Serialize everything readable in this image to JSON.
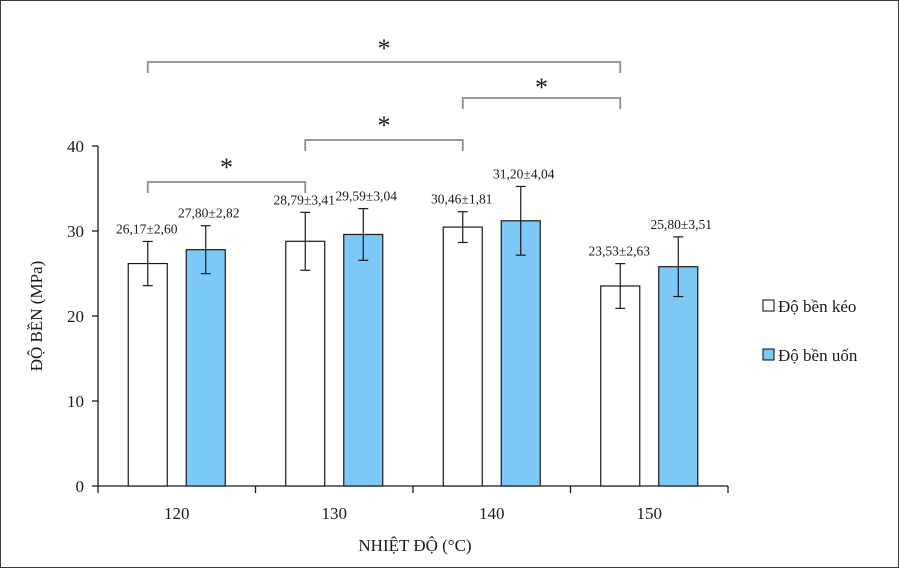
{
  "chart_data": {
    "type": "bar",
    "xlabel": "NHIỆT ĐỘ (°C)",
    "ylabel": "ĐỘ BỀN (MPa)",
    "categories": [
      "120",
      "130",
      "140",
      "150"
    ],
    "ylim": [
      0,
      40
    ],
    "yticks": [
      0,
      10,
      20,
      30,
      40
    ],
    "grid": false,
    "legend_position": "right",
    "series": [
      {
        "name": "Độ bền kéo",
        "color": "#ffffff",
        "values": [
          26.17,
          28.79,
          30.46,
          23.53
        ],
        "errors": [
          2.6,
          3.41,
          1.81,
          2.63
        ],
        "labels": [
          "26,17±2,60",
          "28,79±3,41",
          "30,46±1,81",
          "23,53±2,63"
        ]
      },
      {
        "name": "Độ bền uốn",
        "color": "#7cc8f7",
        "values": [
          27.8,
          29.59,
          31.2,
          25.8
        ],
        "errors": [
          2.82,
          3.04,
          4.04,
          3.51
        ],
        "labels": [
          "27,80±2,82",
          "29,59±3,04",
          "31,20±4,04",
          "25,80±3,51"
        ]
      }
    ],
    "significance": [
      {
        "from": "120",
        "to": "130",
        "label": "*"
      },
      {
        "from": "130",
        "to": "140",
        "label": "*"
      },
      {
        "from": "140",
        "to": "150",
        "label": "*"
      },
      {
        "from": "120",
        "to": "150",
        "label": "*"
      }
    ]
  }
}
